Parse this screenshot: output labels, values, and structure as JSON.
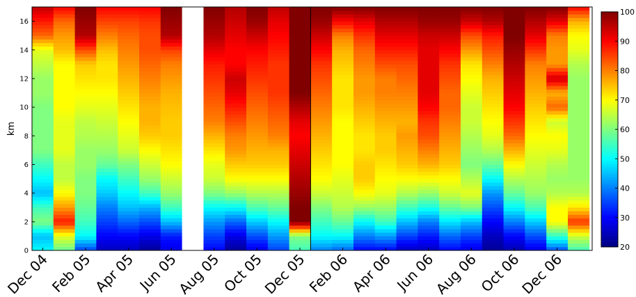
{
  "chart_data": {
    "type": "heatmap",
    "title": "",
    "ylabel": "km",
    "xlabel": "",
    "y_range": [
      0,
      17
    ],
    "y_ticks": [
      {
        "value": 0,
        "label": "0"
      },
      {
        "value": 2,
        "label": "2"
      },
      {
        "value": 4,
        "label": "4"
      },
      {
        "value": 6,
        "label": "6"
      },
      {
        "value": 8,
        "label": "8"
      },
      {
        "value": 10,
        "label": "10"
      },
      {
        "value": 12,
        "label": "12"
      },
      {
        "value": 14,
        "label": "14"
      },
      {
        "value": 16,
        "label": "16"
      }
    ],
    "x_tick_labels": [
      "Dec 04",
      "Feb 05",
      "Apr 05",
      "Jun 05",
      "Aug 05",
      "Oct 05",
      "Dec 05",
      "Feb 06",
      "Apr 06",
      "Jun 06",
      "Aug 06",
      "Oct 06",
      "Dec 06"
    ],
    "colorbar": {
      "range": [
        20,
        100
      ],
      "ticks": [
        20,
        30,
        40,
        50,
        60,
        70,
        80,
        90,
        100
      ],
      "colormap": "jet"
    },
    "altitudes_km": [
      0,
      1,
      2,
      3,
      4,
      5,
      6,
      7,
      8,
      9,
      10,
      11,
      12,
      13,
      14,
      15,
      16,
      17
    ],
    "months": [
      {
        "month": "Dec 04",
        "profile": [
          50,
          45,
          60,
          55,
          45,
          50,
          55,
          60,
          60,
          60,
          60,
          62,
          62,
          65,
          68,
          82,
          88,
          95
        ]
      },
      {
        "month": "Jan 05",
        "profile": [
          58,
          68,
          88,
          78,
          70,
          65,
          65,
          68,
          68,
          68,
          70,
          70,
          70,
          70,
          75,
          78,
          82,
          90
        ]
      },
      {
        "month": "Feb 05",
        "profile": [
          35,
          50,
          55,
          58,
          60,
          60,
          62,
          62,
          64,
          65,
          68,
          70,
          72,
          74,
          84,
          96,
          98,
          100
        ]
      },
      {
        "month": "Mar 05",
        "profile": [
          25,
          30,
          35,
          40,
          46,
          50,
          58,
          62,
          64,
          66,
          68,
          70,
          72,
          72,
          75,
          80,
          85,
          90
        ]
      },
      {
        "month": "Apr 05",
        "profile": [
          25,
          30,
          38,
          45,
          50,
          55,
          60,
          66,
          68,
          70,
          72,
          74,
          76,
          78,
          80,
          82,
          85,
          90
        ]
      },
      {
        "month": "May 05",
        "profile": [
          22,
          28,
          36,
          44,
          55,
          62,
          66,
          70,
          74,
          76,
          76,
          78,
          80,
          82,
          84,
          84,
          86,
          90
        ]
      },
      {
        "month": "Jun 05",
        "profile": [
          28,
          32,
          45,
          55,
          62,
          66,
          70,
          72,
          74,
          74,
          75,
          76,
          78,
          80,
          85,
          96,
          98,
          100
        ]
      },
      {
        "month": "Aug 05",
        "profile": [
          30,
          35,
          42,
          50,
          60,
          66,
          68,
          72,
          76,
          80,
          82,
          84,
          86,
          88,
          92,
          96,
          98,
          100
        ]
      },
      {
        "month": "Sep 05",
        "profile": [
          22,
          28,
          38,
          50,
          62,
          70,
          74,
          78,
          80,
          84,
          88,
          92,
          94,
          90,
          90,
          92,
          94,
          96
        ]
      },
      {
        "month": "Oct 05",
        "profile": [
          28,
          36,
          46,
          56,
          64,
          70,
          74,
          76,
          78,
          80,
          82,
          84,
          86,
          88,
          90,
          94,
          98,
          100
        ]
      },
      {
        "month": "Nov 05",
        "profile": [
          35,
          42,
          50,
          58,
          64,
          70,
          74,
          76,
          80,
          82,
          84,
          86,
          86,
          86,
          88,
          90,
          92,
          95
        ]
      },
      {
        "month": "Dec 05",
        "profile": [
          55,
          60,
          100,
          100,
          98,
          96,
          94,
          92,
          90,
          92,
          96,
          100,
          100,
          100,
          100,
          100,
          100,
          100
        ]
      },
      {
        "month": "Jan 06",
        "profile": [
          40,
          50,
          55,
          60,
          66,
          70,
          72,
          74,
          76,
          78,
          80,
          82,
          84,
          86,
          90,
          94,
          98,
          100
        ]
      },
      {
        "month": "Feb 06",
        "profile": [
          38,
          50,
          58,
          64,
          66,
          68,
          70,
          70,
          70,
          70,
          72,
          72,
          72,
          74,
          76,
          80,
          90,
          100
        ]
      },
      {
        "month": "Mar 06",
        "profile": [
          30,
          40,
          50,
          62,
          70,
          74,
          74,
          72,
          72,
          74,
          76,
          78,
          78,
          80,
          82,
          86,
          92,
          100
        ]
      },
      {
        "month": "Apr 06",
        "profile": [
          30,
          42,
          55,
          62,
          68,
          70,
          72,
          74,
          74,
          76,
          78,
          80,
          80,
          84,
          88,
          92,
          96,
          100
        ]
      },
      {
        "month": "May 06",
        "profile": [
          25,
          35,
          45,
          55,
          64,
          70,
          74,
          76,
          78,
          76,
          78,
          80,
          82,
          84,
          88,
          92,
          96,
          100
        ]
      },
      {
        "month": "Jun 06",
        "profile": [
          25,
          32,
          40,
          52,
          62,
          70,
          76,
          80,
          84,
          86,
          90,
          92,
          92,
          92,
          92,
          94,
          98,
          100
        ]
      },
      {
        "month": "Jul 06",
        "profile": [
          30,
          38,
          48,
          58,
          66,
          70,
          74,
          76,
          78,
          80,
          82,
          82,
          84,
          86,
          90,
          94,
          98,
          100
        ]
      },
      {
        "month": "Aug 06",
        "profile": [
          28,
          35,
          45,
          60,
          68,
          64,
          60,
          62,
          64,
          66,
          66,
          68,
          70,
          72,
          78,
          84,
          94,
          100
        ]
      },
      {
        "month": "Sep 06",
        "profile": [
          22,
          25,
          30,
          36,
          42,
          50,
          58,
          64,
          68,
          70,
          72,
          74,
          76,
          80,
          84,
          88,
          96,
          100
        ]
      },
      {
        "month": "Oct 06",
        "profile": [
          24,
          30,
          40,
          50,
          58,
          64,
          70,
          76,
          82,
          86,
          90,
          92,
          94,
          96,
          98,
          100,
          100,
          100
        ]
      },
      {
        "month": "Nov 06",
        "profile": [
          28,
          36,
          46,
          56,
          62,
          64,
          66,
          68,
          70,
          72,
          74,
          76,
          78,
          80,
          86,
          92,
          96,
          100
        ]
      },
      {
        "month": "Dec 06",
        "profile": [
          36,
          54,
          70,
          70,
          64,
          62,
          64,
          68,
          70,
          66,
          82,
          76,
          94,
          78,
          78,
          80,
          92,
          100
        ]
      },
      {
        "month": "Jan 07",
        "profile": [
          55,
          66,
          86,
          72,
          64,
          62,
          62,
          62,
          62,
          62,
          62,
          62,
          62,
          64,
          68,
          70,
          76,
          90
        ]
      }
    ],
    "missing_months": [
      "Jul 05"
    ]
  }
}
